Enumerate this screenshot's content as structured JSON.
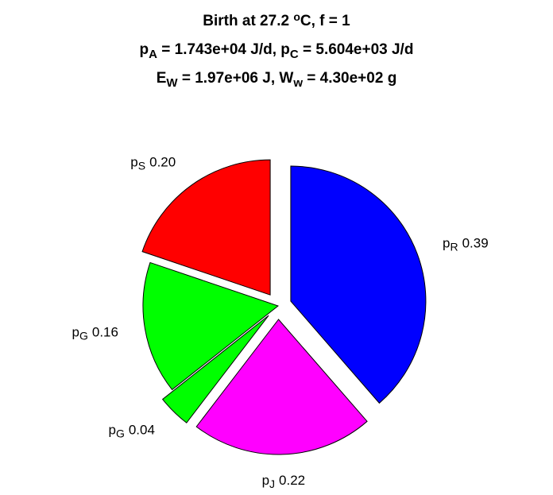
{
  "chart_data": {
    "type": "pie",
    "title": [
      [
        {
          "t": "Birth at 27.2 "
        },
        {
          "t": "o",
          "s": "sup"
        },
        {
          "t": "C, f = 1"
        }
      ],
      [
        {
          "t": "p"
        },
        {
          "t": "A",
          "s": "sub"
        },
        {
          "t": " = 1.743e+04 J/d, p"
        },
        {
          "t": "C",
          "s": "sub"
        },
        {
          "t": " = 5.604e+03 J/d"
        }
      ],
      [
        {
          "t": "E"
        },
        {
          "t": "W",
          "s": "sub"
        },
        {
          "t": " = 1.97e+06 J, W"
        },
        {
          "t": "w",
          "s": "sub"
        },
        {
          "t": " = 4.30e+02 g"
        }
      ]
    ],
    "categories": [
      [
        "p",
        "R"
      ],
      [
        "p",
        "J"
      ],
      [
        "p",
        "G"
      ],
      [
        "p",
        "G"
      ],
      [
        "p",
        "S"
      ]
    ],
    "values": [
      0.39,
      0.22,
      0.04,
      0.16,
      0.2
    ],
    "value_labels": [
      "0.39",
      "0.22",
      "0.04",
      "0.16",
      "0.20"
    ],
    "colors": [
      "#0000ff",
      "#ff00ff",
      "#00ff00",
      "#00ff00",
      "#ff0000"
    ],
    "explode": [
      1,
      1,
      1,
      0,
      1
    ]
  }
}
